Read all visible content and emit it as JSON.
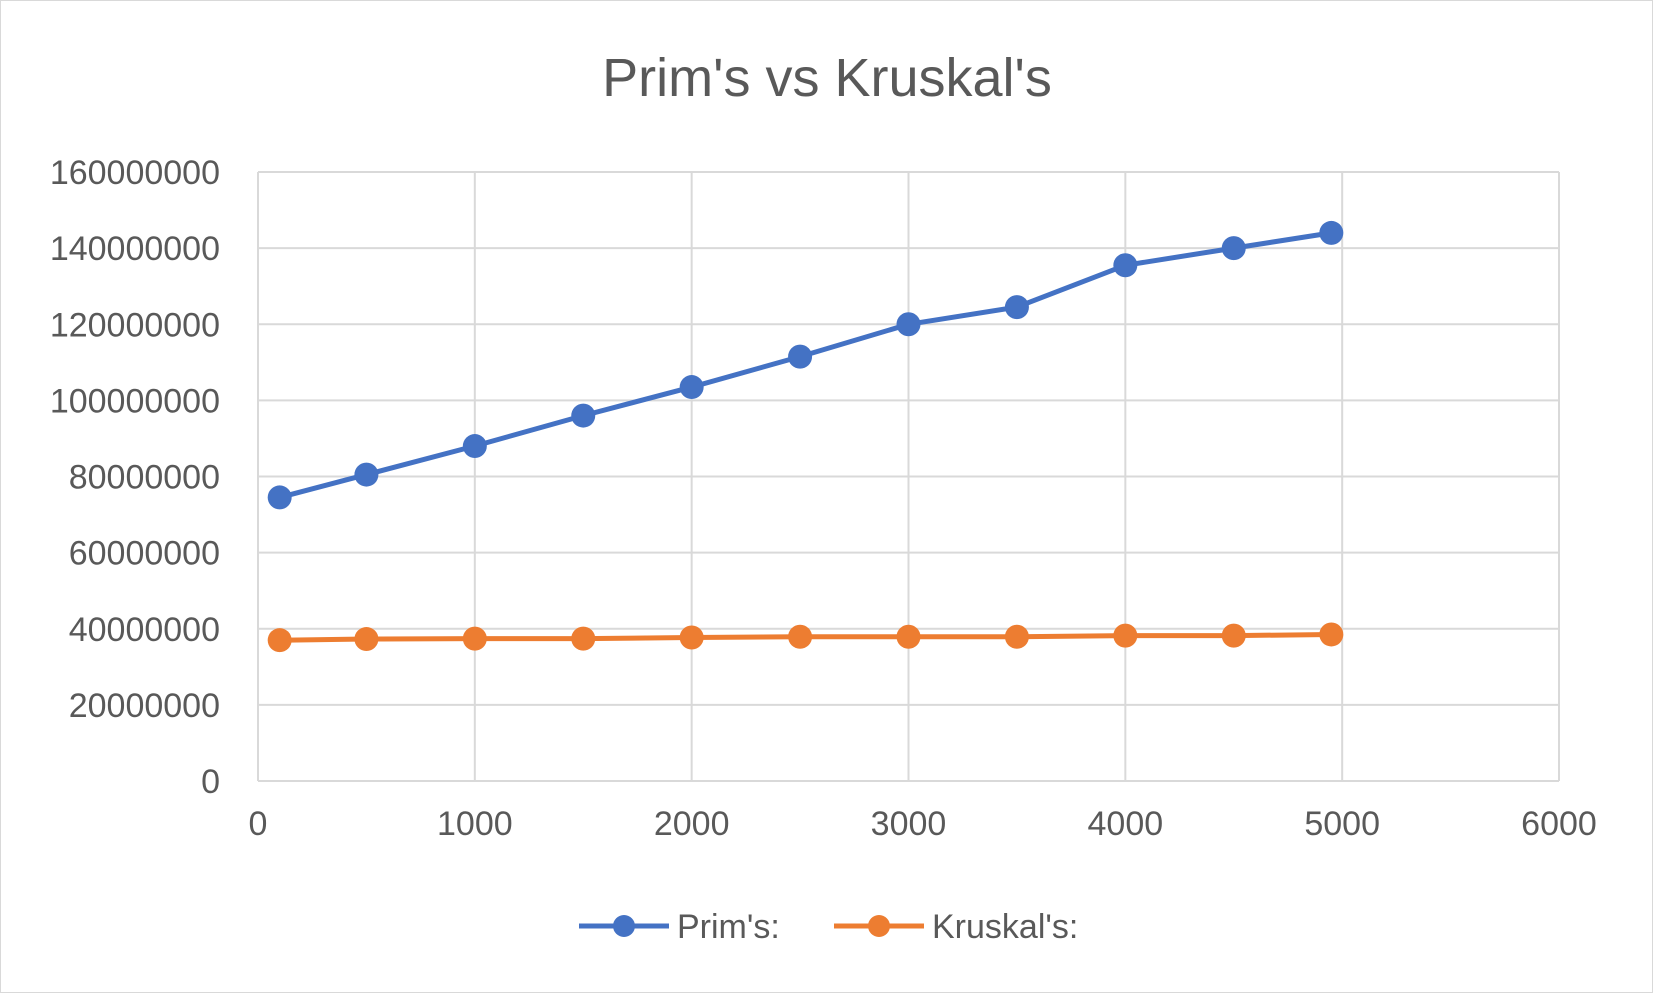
{
  "chart_data": {
    "type": "line",
    "title": "Prim's vs Kruskal's",
    "xlabel": "",
    "ylabel": "",
    "xlim": [
      0,
      6000
    ],
    "ylim": [
      0,
      160000000
    ],
    "x_ticks": [
      "0",
      "1000",
      "2000",
      "3000",
      "4000",
      "5000",
      "6000"
    ],
    "y_ticks": [
      "0",
      "20000000",
      "40000000",
      "60000000",
      "80000000",
      "100000000",
      "120000000",
      "140000000",
      "160000000"
    ],
    "grid": true,
    "legend_position": "bottom",
    "series": [
      {
        "name": "Prim's:",
        "color": "#4472c4",
        "x": [
          100,
          500,
          1000,
          1500,
          2000,
          2500,
          3000,
          3500,
          4000,
          4500,
          4950
        ],
        "values": [
          74500000,
          80500000,
          88000000,
          96000000,
          103500000,
          111500000,
          120000000,
          124500000,
          135500000,
          140000000,
          144000000
        ]
      },
      {
        "name": "Kruskal's:",
        "color": "#ed7d31",
        "x": [
          100,
          500,
          1000,
          1500,
          2000,
          2500,
          3000,
          3500,
          4000,
          4500,
          4950
        ],
        "values": [
          37000000,
          37300000,
          37400000,
          37400000,
          37700000,
          37900000,
          37900000,
          37900000,
          38200000,
          38200000,
          38500000
        ]
      }
    ]
  }
}
